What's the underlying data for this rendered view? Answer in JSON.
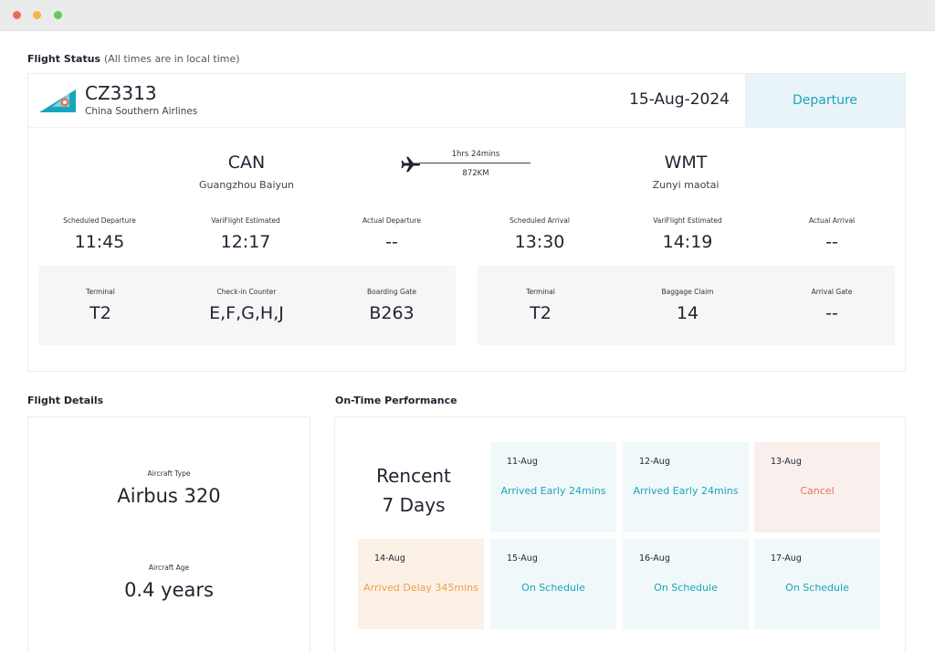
{
  "window": {
    "controls": [
      "close",
      "minimize",
      "maximize"
    ]
  },
  "flight_status": {
    "title": "Flight Status",
    "subtitle": "(All times are in local time)",
    "flight_number": "CZ3313",
    "airline": "China Southern Airlines",
    "date": "15-Aug-2024",
    "direction_tab": "Departure",
    "departure_airport": {
      "code": "CAN",
      "name": "Guangzhou Baiyun"
    },
    "arrival_airport": {
      "code": "WMT",
      "name": "Zunyi maotai"
    },
    "duration": "1hrs 24mins",
    "distance": "872KM",
    "times": [
      {
        "label": "Scheduled Departure",
        "value": "11:45"
      },
      {
        "label": "VariFlight Estimated",
        "value": "12:17"
      },
      {
        "label": "Actual Departure",
        "value": "--"
      },
      {
        "label": "Scheduled Arrival",
        "value": "13:30"
      },
      {
        "label": "VariFlight Estimated",
        "value": "14:19"
      },
      {
        "label": "Actual Arrival",
        "value": "--"
      }
    ],
    "departure_info": [
      {
        "label": "Terminal",
        "value": "T2"
      },
      {
        "label": "Check-in Counter",
        "value": "E,F,G,H,J"
      },
      {
        "label": "Boarding Gate",
        "value": "B263"
      }
    ],
    "arrival_info": [
      {
        "label": "Terminal",
        "value": "T2"
      },
      {
        "label": "Baggage Claim",
        "value": "14"
      },
      {
        "label": "Arrival Gate",
        "value": "--"
      }
    ]
  },
  "flight_details": {
    "title": "Flight Details",
    "aircraft_type_label": "Aircraft Type",
    "aircraft_type": "Airbus 320",
    "aircraft_age_label": "Aircraft Age",
    "aircraft_age": "0.4 years"
  },
  "on_time_performance": {
    "title": "On-Time Performance",
    "recent_line1": "Rencent",
    "recent_line2": "7 Days",
    "days": [
      {
        "date": "11-Aug",
        "status": "Arrived Early 24mins",
        "tone": "teal"
      },
      {
        "date": "12-Aug",
        "status": "Arrived Early 24mins",
        "tone": "teal"
      },
      {
        "date": "13-Aug",
        "status": "Cancel",
        "tone": "red"
      },
      {
        "date": "14-Aug",
        "status": "Arrived Delay 345mins",
        "tone": "orange"
      },
      {
        "date": "15-Aug",
        "status": "On Schedule",
        "tone": "teal"
      },
      {
        "date": "16-Aug",
        "status": "On Schedule",
        "tone": "teal"
      },
      {
        "date": "17-Aug",
        "status": "On Schedule",
        "tone": "teal"
      }
    ]
  },
  "colors": {
    "accent": "#1aa5bc",
    "cancel": "#e8705a",
    "delay": "#eda14b",
    "logo": "#1aa5bc"
  }
}
